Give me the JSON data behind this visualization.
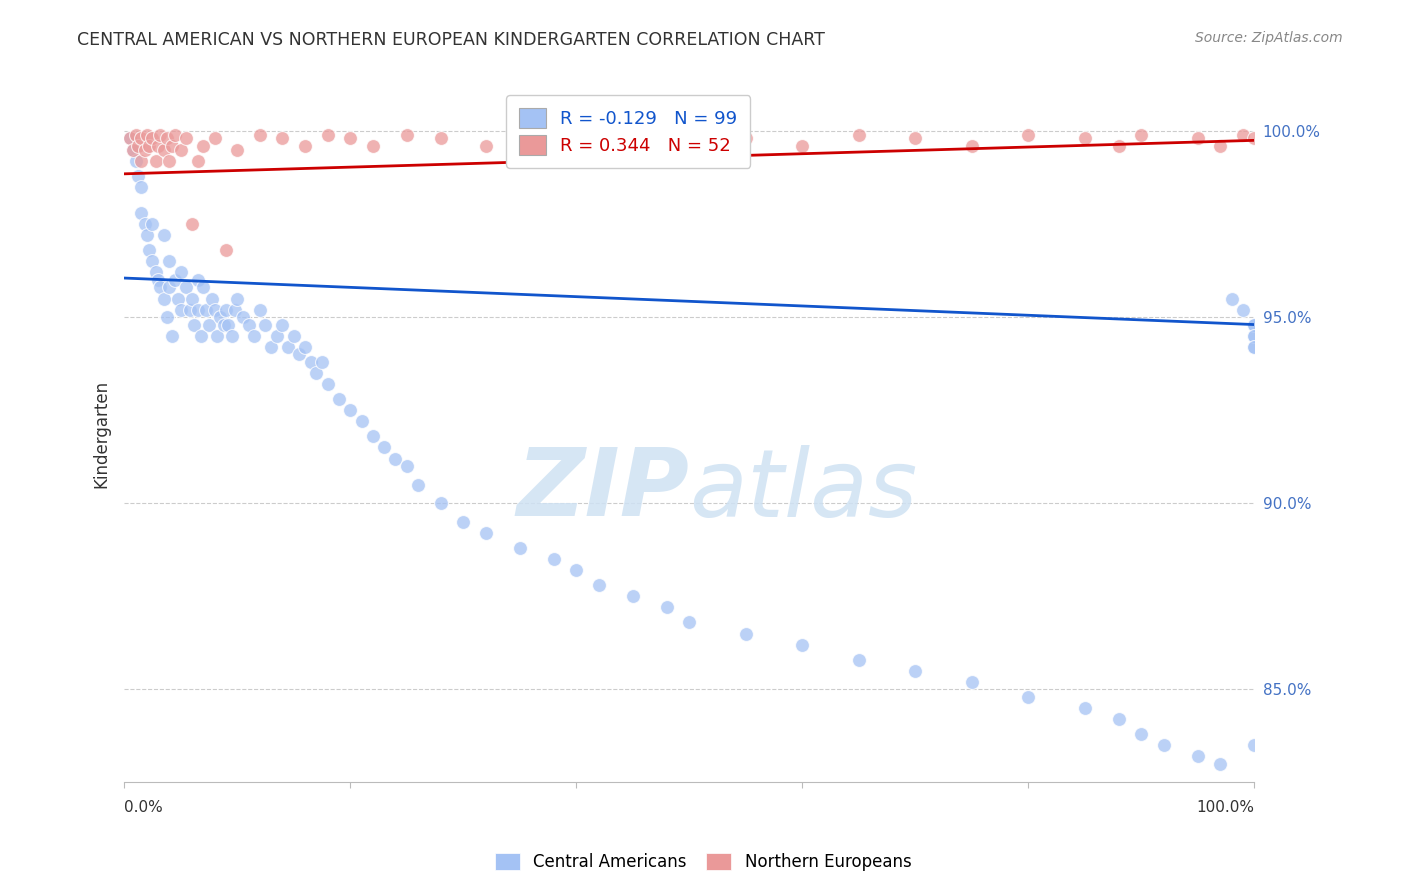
{
  "title": "CENTRAL AMERICAN VS NORTHERN EUROPEAN KINDERGARTEN CORRELATION CHART",
  "source": "Source: ZipAtlas.com",
  "ylabel": "Kindergarten",
  "ytick_labels": [
    "100.0%",
    "95.0%",
    "90.0%",
    "85.0%"
  ],
  "ytick_values": [
    1.0,
    0.95,
    0.9,
    0.85
  ],
  "xlim": [
    0.0,
    1.0
  ],
  "ylim": [
    0.825,
    1.012
  ],
  "legend_blue_R": "-0.129",
  "legend_blue_N": "99",
  "legend_pink_R": "0.344",
  "legend_pink_N": "52",
  "blue_color": "#a4c2f4",
  "pink_color": "#ea9999",
  "blue_line_color": "#1155cc",
  "pink_line_color": "#cc0000",
  "watermark_color": "#cfe2f3",
  "blue_line_x": [
    0.0,
    1.0
  ],
  "blue_line_y": [
    0.9605,
    0.948
  ],
  "pink_line_x": [
    0.0,
    1.0
  ],
  "pink_line_y": [
    0.9885,
    0.9975
  ],
  "blue_scatter_x": [
    0.005,
    0.008,
    0.01,
    0.012,
    0.015,
    0.015,
    0.018,
    0.02,
    0.022,
    0.025,
    0.025,
    0.028,
    0.03,
    0.032,
    0.035,
    0.035,
    0.038,
    0.04,
    0.04,
    0.042,
    0.045,
    0.048,
    0.05,
    0.05,
    0.055,
    0.058,
    0.06,
    0.062,
    0.065,
    0.065,
    0.068,
    0.07,
    0.072,
    0.075,
    0.078,
    0.08,
    0.082,
    0.085,
    0.088,
    0.09,
    0.092,
    0.095,
    0.098,
    0.1,
    0.105,
    0.11,
    0.115,
    0.12,
    0.125,
    0.13,
    0.135,
    0.14,
    0.145,
    0.15,
    0.155,
    0.16,
    0.165,
    0.17,
    0.175,
    0.18,
    0.19,
    0.2,
    0.21,
    0.22,
    0.23,
    0.24,
    0.25,
    0.26,
    0.28,
    0.3,
    0.32,
    0.35,
    0.38,
    0.4,
    0.42,
    0.45,
    0.48,
    0.5,
    0.55,
    0.6,
    0.65,
    0.7,
    0.75,
    0.8,
    0.85,
    0.88,
    0.9,
    0.92,
    0.95,
    0.97,
    0.98,
    0.99,
    1.0,
    1.0,
    1.0,
    1.0,
    1.0,
    1.0,
    1.0
  ],
  "blue_scatter_y": [
    0.998,
    0.995,
    0.992,
    0.988,
    0.985,
    0.978,
    0.975,
    0.972,
    0.968,
    0.965,
    0.975,
    0.962,
    0.96,
    0.958,
    0.955,
    0.972,
    0.95,
    0.965,
    0.958,
    0.945,
    0.96,
    0.955,
    0.952,
    0.962,
    0.958,
    0.952,
    0.955,
    0.948,
    0.96,
    0.952,
    0.945,
    0.958,
    0.952,
    0.948,
    0.955,
    0.952,
    0.945,
    0.95,
    0.948,
    0.952,
    0.948,
    0.945,
    0.952,
    0.955,
    0.95,
    0.948,
    0.945,
    0.952,
    0.948,
    0.942,
    0.945,
    0.948,
    0.942,
    0.945,
    0.94,
    0.942,
    0.938,
    0.935,
    0.938,
    0.932,
    0.928,
    0.925,
    0.922,
    0.918,
    0.915,
    0.912,
    0.91,
    0.905,
    0.9,
    0.895,
    0.892,
    0.888,
    0.885,
    0.882,
    0.878,
    0.875,
    0.872,
    0.868,
    0.865,
    0.862,
    0.858,
    0.855,
    0.852,
    0.848,
    0.845,
    0.842,
    0.838,
    0.835,
    0.832,
    0.83,
    0.955,
    0.952,
    0.948,
    0.945,
    0.942,
    0.948,
    0.945,
    0.942,
    0.835
  ],
  "pink_scatter_x": [
    0.005,
    0.008,
    0.01,
    0.012,
    0.015,
    0.015,
    0.018,
    0.02,
    0.022,
    0.025,
    0.028,
    0.03,
    0.032,
    0.035,
    0.038,
    0.04,
    0.042,
    0.045,
    0.05,
    0.055,
    0.06,
    0.065,
    0.07,
    0.08,
    0.09,
    0.1,
    0.12,
    0.14,
    0.16,
    0.18,
    0.2,
    0.22,
    0.25,
    0.28,
    0.32,
    0.36,
    0.4,
    0.45,
    0.5,
    0.55,
    0.6,
    0.65,
    0.7,
    0.75,
    0.8,
    0.85,
    0.88,
    0.9,
    0.95,
    0.97,
    0.99,
    1.0
  ],
  "pink_scatter_y": [
    0.998,
    0.995,
    0.999,
    0.996,
    0.998,
    0.992,
    0.995,
    0.999,
    0.996,
    0.998,
    0.992,
    0.996,
    0.999,
    0.995,
    0.998,
    0.992,
    0.996,
    0.999,
    0.995,
    0.998,
    0.975,
    0.992,
    0.996,
    0.998,
    0.968,
    0.995,
    0.999,
    0.998,
    0.996,
    0.999,
    0.998,
    0.996,
    0.999,
    0.998,
    0.996,
    0.999,
    0.998,
    0.996,
    0.999,
    0.998,
    0.996,
    0.999,
    0.998,
    0.996,
    0.999,
    0.998,
    0.996,
    0.999,
    0.998,
    0.996,
    0.999,
    0.998
  ]
}
